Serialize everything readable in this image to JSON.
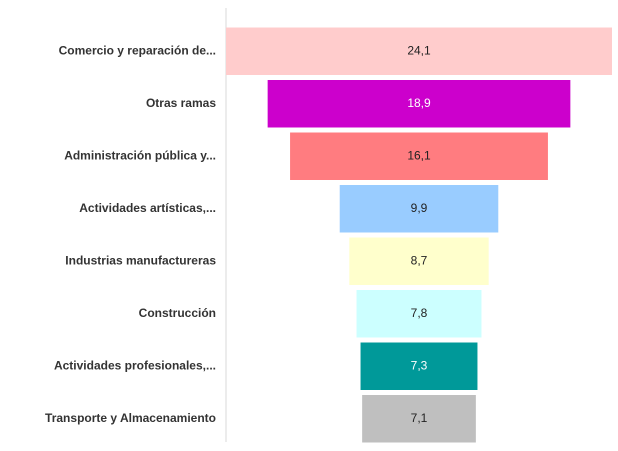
{
  "chart_data": {
    "type": "funnel",
    "categories": [
      "Comercio y reparación de...",
      "Otras ramas",
      "Administración pública y...",
      "Actividades artísticas,...",
      "Industrias manufactureras",
      "Construcción",
      "Actividades profesionales,...",
      "Transporte y Almacenamiento"
    ],
    "values": [
      24.1,
      18.9,
      16.1,
      9.9,
      8.7,
      7.8,
      7.3,
      7.1
    ],
    "value_labels": [
      "24,1",
      "18,9",
      "16,1",
      "9,9",
      "8,7",
      "7,8",
      "7,3",
      "7,1"
    ],
    "colors": [
      "#ffcccc",
      "#cc00cc",
      "#ff7c80",
      "#99ccff",
      "#ffffcc",
      "#ccffff",
      "#009999",
      "#bfbfbf"
    ]
  }
}
